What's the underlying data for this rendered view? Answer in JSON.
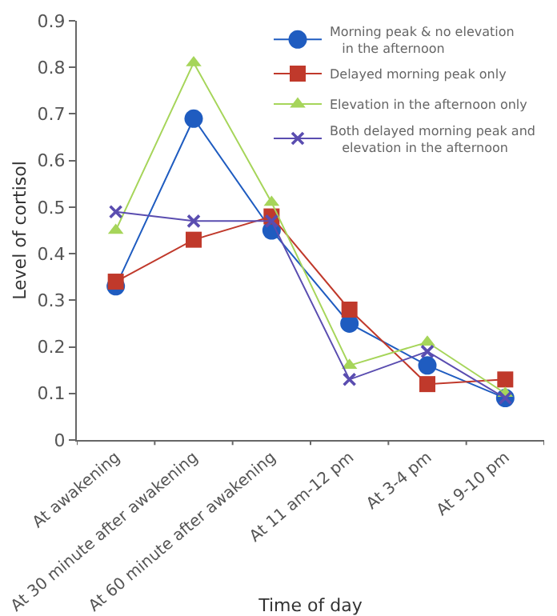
{
  "chart_data": {
    "type": "line",
    "xlabel": "Time of day",
    "ylabel": "Level of cortisol",
    "categories": [
      "At awakening",
      "At 30 minute after awakening",
      "At 60 minute after awakening",
      "At 11 am-12 pm",
      "At 3-4 pm",
      "At 9-10 pm"
    ],
    "series": [
      {
        "name": "Morning peak & no elevation in the afternoon",
        "color": "#1f5cc0",
        "marker": "circle",
        "values": [
          0.33,
          0.69,
          0.45,
          0.25,
          0.16,
          0.09
        ]
      },
      {
        "name": "Delayed morning peak only",
        "color": "#c0392b",
        "marker": "square",
        "values": [
          0.34,
          0.43,
          0.48,
          0.28,
          0.12,
          0.13
        ]
      },
      {
        "name": "Elevation in the afternoon only",
        "color": "#a6d55a",
        "marker": "triangle",
        "values": [
          0.45,
          0.81,
          0.51,
          0.16,
          0.21,
          0.1
        ]
      },
      {
        "name": "Both delayed morning peak and elevation in the afternoon",
        "color": "#5a4db0",
        "marker": "cross",
        "values": [
          0.49,
          0.47,
          0.47,
          0.13,
          0.19,
          0.09
        ]
      }
    ],
    "ylim": [
      0,
      0.9
    ],
    "yticks": [
      0,
      0.1,
      0.2,
      0.3,
      0.4,
      0.5,
      0.6,
      0.7,
      0.8,
      0.9
    ],
    "grid": false,
    "legend": "top right",
    "line_style": "solid"
  }
}
